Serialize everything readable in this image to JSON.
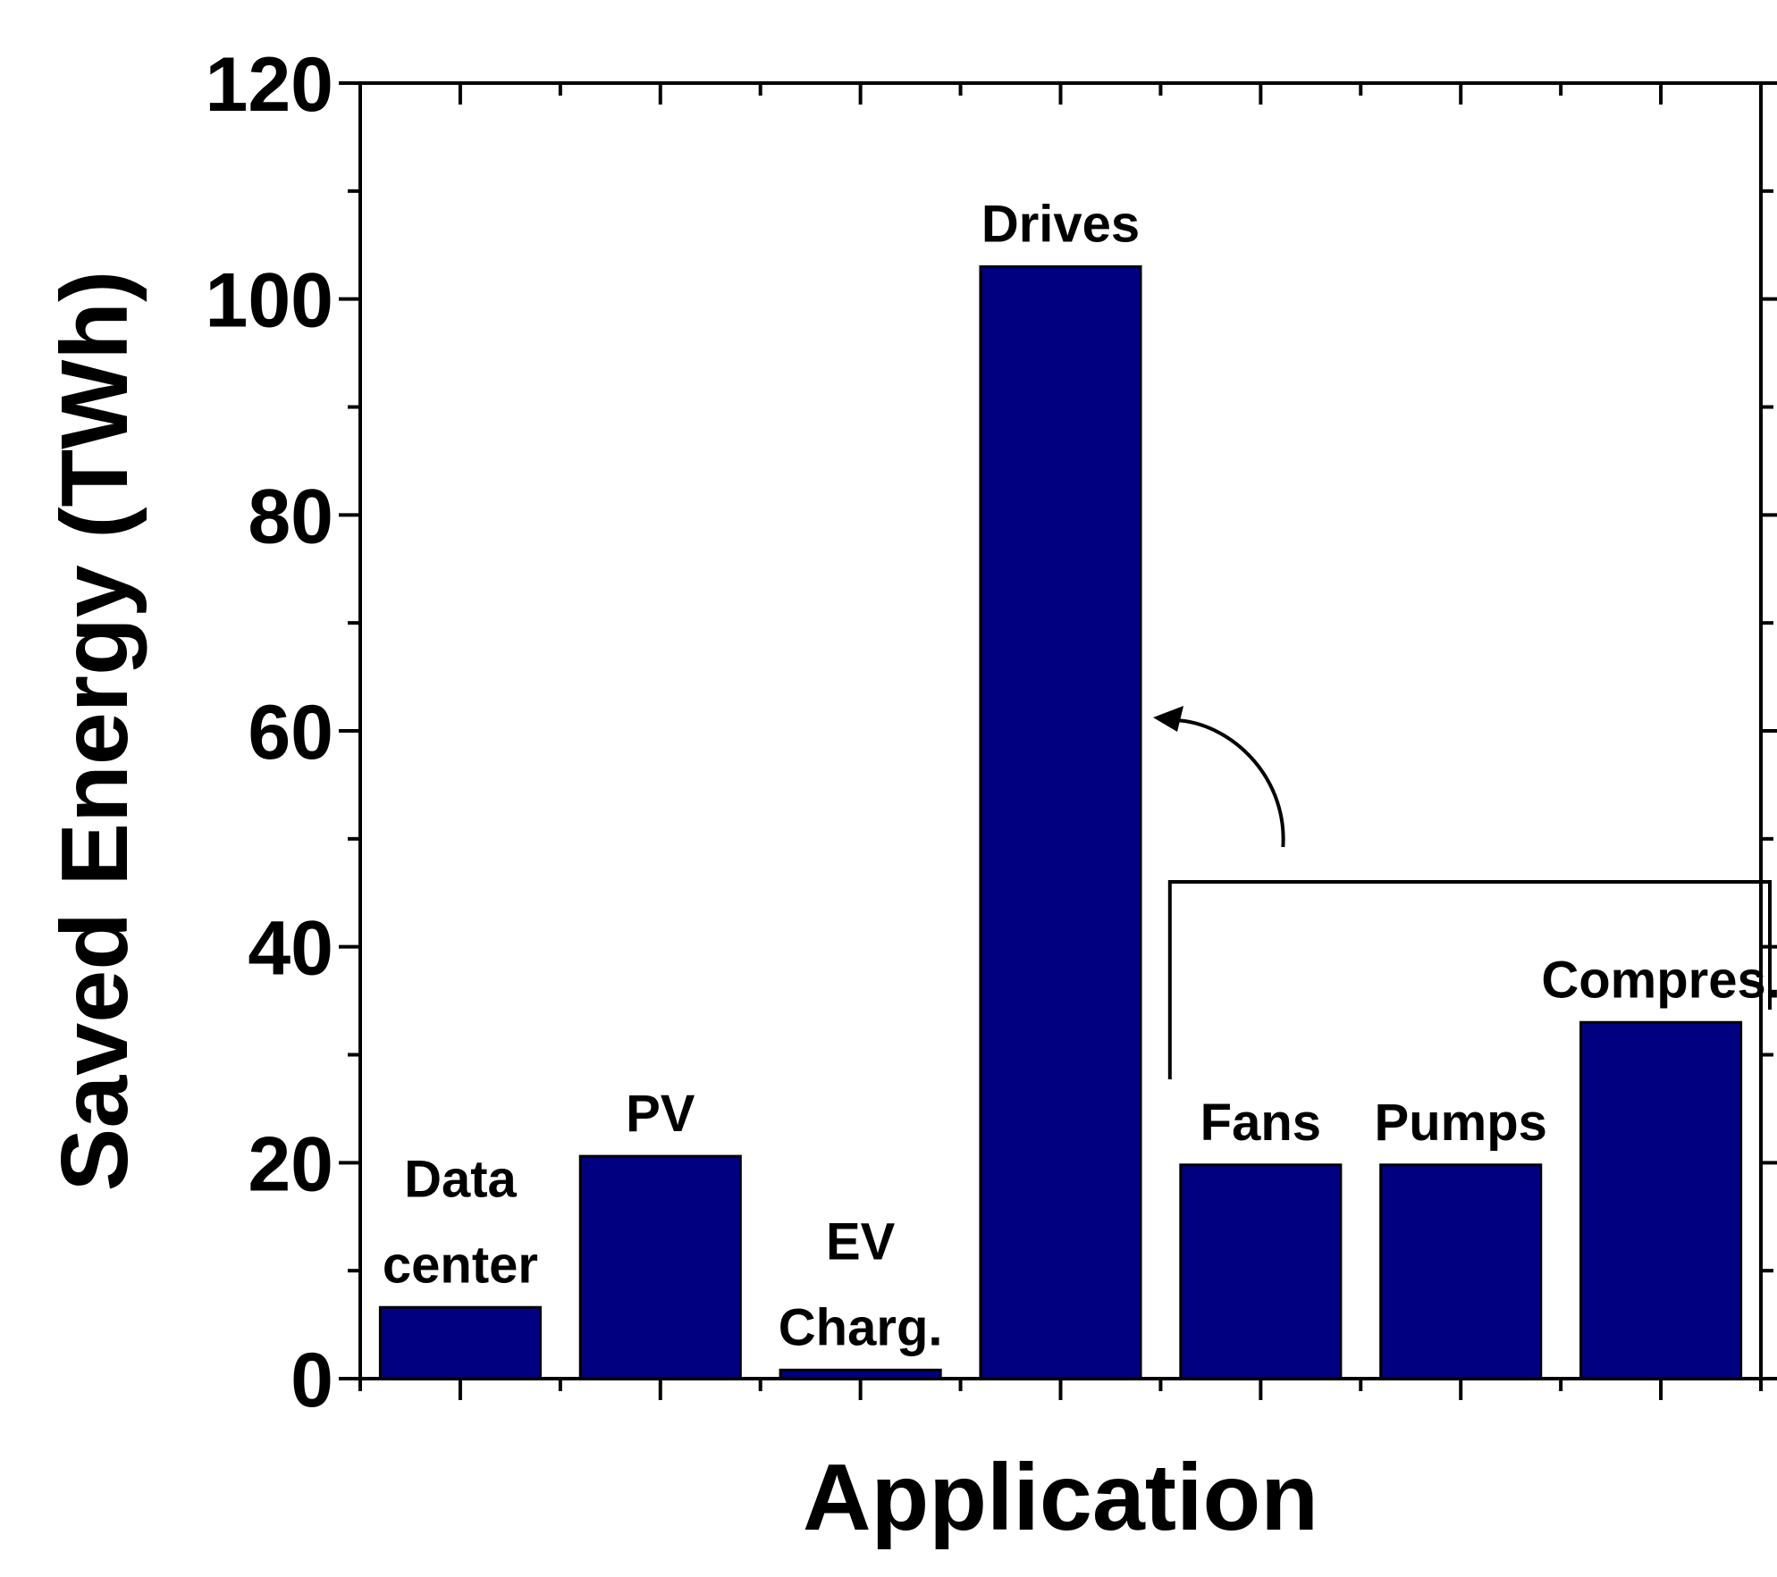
{
  "chart_data": {
    "type": "bar",
    "xlabel": "Application",
    "ylabel": "Saved Energy (TWh)",
    "ylim": [
      0,
      120
    ],
    "yticks": [
      0,
      20,
      40,
      60,
      80,
      100,
      120
    ],
    "grid": false,
    "bar_color": "#000080",
    "categories": [
      "Data center",
      "PV",
      "EV Charg.",
      "Drives",
      "Fans",
      "Pumps",
      "Compres."
    ],
    "label_lines": [
      [
        "Data",
        "center"
      ],
      [
        "PV"
      ],
      [
        "EV",
        "Charg."
      ],
      [
        "Drives"
      ],
      [
        "Fans"
      ],
      [
        "Pumps"
      ],
      [
        "Compres."
      ]
    ],
    "values": [
      6.6,
      20.6,
      0.8,
      103,
      19.8,
      19.8,
      33
    ],
    "annotations": [
      {
        "type": "bracket",
        "groups": [
          "Fans",
          "Pumps",
          "Compres."
        ],
        "points_to": "Drives",
        "arrow": true
      }
    ]
  }
}
